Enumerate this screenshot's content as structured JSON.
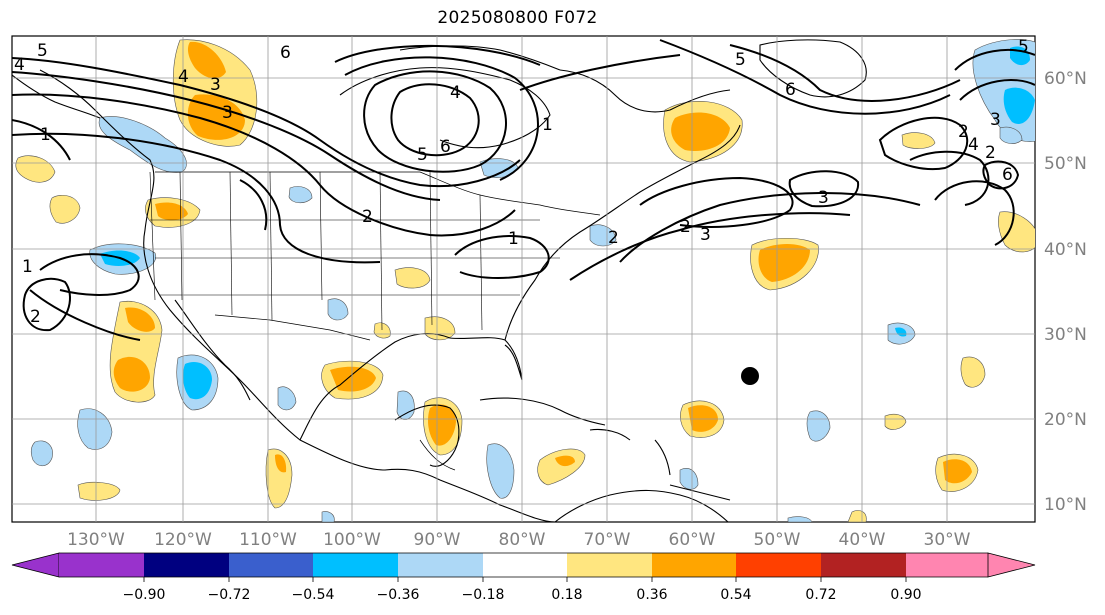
{
  "title": "2025080800 F072",
  "map": {
    "longitude_labels": [
      "130°W",
      "120°W",
      "110°W",
      "100°W",
      "90°W",
      "80°W",
      "70°W",
      "60°W",
      "50°W",
      "40°W",
      "30°W"
    ],
    "latitude_labels": [
      "60°N",
      "50°N",
      "40°N",
      "30°N",
      "20°N",
      "10°N"
    ],
    "contour_labels": [
      "5",
      "4",
      "3",
      "3",
      "2",
      "1",
      "4",
      "6",
      "5",
      "6",
      "4",
      "5",
      "6",
      "5",
      "3",
      "2",
      "4",
      "3",
      "2",
      "3",
      "2",
      "6",
      "2",
      "1",
      "1",
      "1",
      "2"
    ],
    "marker": "storm-center-dot"
  },
  "colorbar": {
    "ticks": [
      "−0.90",
      "−0.72",
      "−0.54",
      "−0.36",
      "−0.18",
      "0.18",
      "0.36",
      "0.54",
      "0.72",
      "0.90"
    ],
    "colors": {
      "below": "#9932cc",
      "c1": "#000080",
      "c2": "#3a5fcd",
      "c3": "#00bfff",
      "c4": "#add8f6",
      "c5": "#ffffff",
      "c6": "#ffe680",
      "c7": "#ffa500",
      "c8": "#ff4000",
      "c9": "#b22222",
      "above": "#ff85b0"
    }
  }
}
